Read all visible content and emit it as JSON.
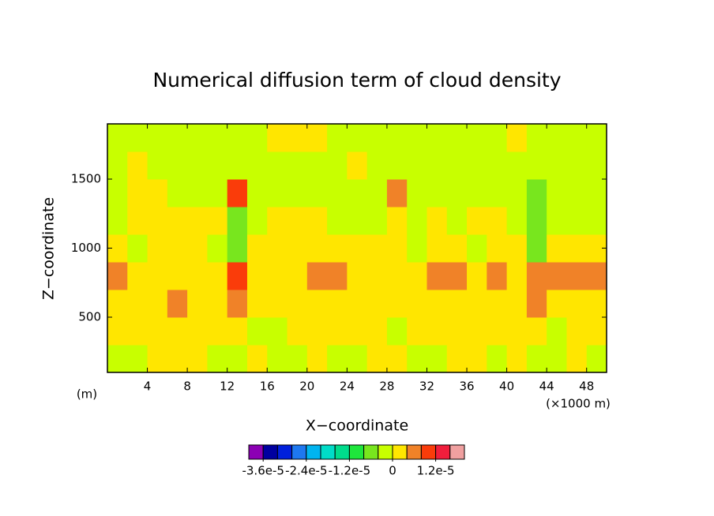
{
  "chart_data": {
    "type": "contour",
    "title": "Numerical diffusion term of cloud density",
    "xlabel": "X−coordinate",
    "ylabel": "Z−coordinate",
    "x_unit": "(×1000 m)",
    "y_unit": "(m)",
    "xlim": [
      0,
      50
    ],
    "ylim": [
      100,
      1900
    ],
    "xticks": [
      4,
      8,
      12,
      16,
      20,
      24,
      28,
      32,
      36,
      40,
      44,
      48
    ],
    "yticks": [
      500,
      1000,
      1500
    ],
    "z": [
      [
        -2e-06,
        -2e-06,
        2e-06,
        2e-06,
        2e-06,
        -2e-06,
        -2e-06,
        2e-06,
        -2e-06,
        -2e-06,
        2e-06,
        -2e-06,
        -2e-06,
        2e-06,
        2e-06,
        -2e-06,
        -2e-06,
        2e-06,
        2e-06,
        -2e-06,
        2e-06,
        -2e-06,
        -2e-06,
        2e-06,
        -2e-06
      ],
      [
        2e-06,
        2e-06,
        2e-06,
        2e-06,
        2e-06,
        2e-06,
        2e-06,
        -2e-06,
        -2e-06,
        2e-06,
        2e-06,
        2e-06,
        2e-06,
        2e-06,
        -2e-06,
        2e-06,
        2e-06,
        2e-06,
        2e-06,
        2e-06,
        2e-06,
        2e-06,
        -2e-06,
        2e-06,
        2e-06
      ],
      [
        2e-06,
        2e-06,
        2e-06,
        6e-06,
        2e-06,
        2e-06,
        6e-06,
        2e-06,
        2e-06,
        2e-06,
        2e-06,
        2e-06,
        2e-06,
        2e-06,
        2e-06,
        2e-06,
        2e-06,
        2e-06,
        2e-06,
        2e-06,
        2e-06,
        6e-06,
        2e-06,
        2e-06,
        2e-06
      ],
      [
        6e-06,
        2e-06,
        2e-06,
        2e-06,
        2e-06,
        2e-06,
        1e-05,
        2e-06,
        2e-06,
        2e-06,
        6e-06,
        6e-06,
        2e-06,
        2e-06,
        2e-06,
        2e-06,
        6e-06,
        6e-06,
        2e-06,
        6e-06,
        2e-06,
        6e-06,
        6e-06,
        6e-06,
        6e-06
      ],
      [
        2e-06,
        -2e-06,
        2e-06,
        2e-06,
        2e-06,
        -2e-06,
        -6e-06,
        2e-06,
        2e-06,
        2e-06,
        2e-06,
        2e-06,
        2e-06,
        2e-06,
        2e-06,
        -2e-06,
        2e-06,
        2e-06,
        -2e-06,
        2e-06,
        2e-06,
        -6e-06,
        2e-06,
        2e-06,
        2e-06
      ],
      [
        -2e-06,
        2e-06,
        2e-06,
        2e-06,
        2e-06,
        2e-06,
        -6e-06,
        -2e-06,
        2e-06,
        2e-06,
        2e-06,
        -2e-06,
        -2e-06,
        -2e-06,
        2e-06,
        -2e-06,
        2e-06,
        -2e-06,
        2e-06,
        2e-06,
        -2e-06,
        -6e-06,
        -2e-06,
        -2e-06,
        -2e-06
      ],
      [
        -2e-06,
        2e-06,
        2e-06,
        -2e-06,
        -2e-06,
        -2e-06,
        1e-05,
        -2e-06,
        -2e-06,
        -2e-06,
        -2e-06,
        -2e-06,
        -2e-06,
        -2e-06,
        6e-06,
        -2e-06,
        -2e-06,
        -2e-06,
        -2e-06,
        -2e-06,
        -2e-06,
        -6e-06,
        -2e-06,
        -2e-06,
        -2e-06
      ],
      [
        -2e-06,
        2e-06,
        -2e-06,
        -2e-06,
        -2e-06,
        -2e-06,
        -2e-06,
        -2e-06,
        -2e-06,
        -2e-06,
        -2e-06,
        -2e-06,
        2e-06,
        -2e-06,
        -2e-06,
        -2e-06,
        -2e-06,
        -2e-06,
        -2e-06,
        -2e-06,
        -2e-06,
        -2e-06,
        -2e-06,
        -2e-06,
        -2e-06
      ],
      [
        -2e-06,
        -2e-06,
        -2e-06,
        -2e-06,
        -2e-06,
        -2e-06,
        -2e-06,
        -2e-06,
        2e-06,
        2e-06,
        2e-06,
        -2e-06,
        -2e-06,
        -2e-06,
        -2e-06,
        -2e-06,
        -2e-06,
        -2e-06,
        -2e-06,
        -2e-06,
        2e-06,
        -2e-06,
        -2e-06,
        -2e-06,
        -2e-06
      ]
    ],
    "colorbar": {
      "colors": [
        "#8c00b4",
        "#0000a0",
        "#0020dc",
        "#1e78f0",
        "#00b4f0",
        "#00dcc8",
        "#00dc8c",
        "#1ee63c",
        "#78e61e",
        "#c8ff00",
        "#ffe600",
        "#f08228",
        "#fa3c0a",
        "#f01e3c",
        "#f0a0a0"
      ],
      "lim": [
        -4e-05,
        2e-05
      ],
      "ticks": [
        {
          "value": -3.6e-05,
          "label": "-3.6e-5"
        },
        {
          "value": -2.4e-05,
          "label": "-2.4e-5"
        },
        {
          "value": -1.2e-05,
          "label": "-1.2e-5"
        },
        0,
        {
          "value": 1.2e-05,
          "label": "1.2e-5"
        }
      ]
    }
  }
}
